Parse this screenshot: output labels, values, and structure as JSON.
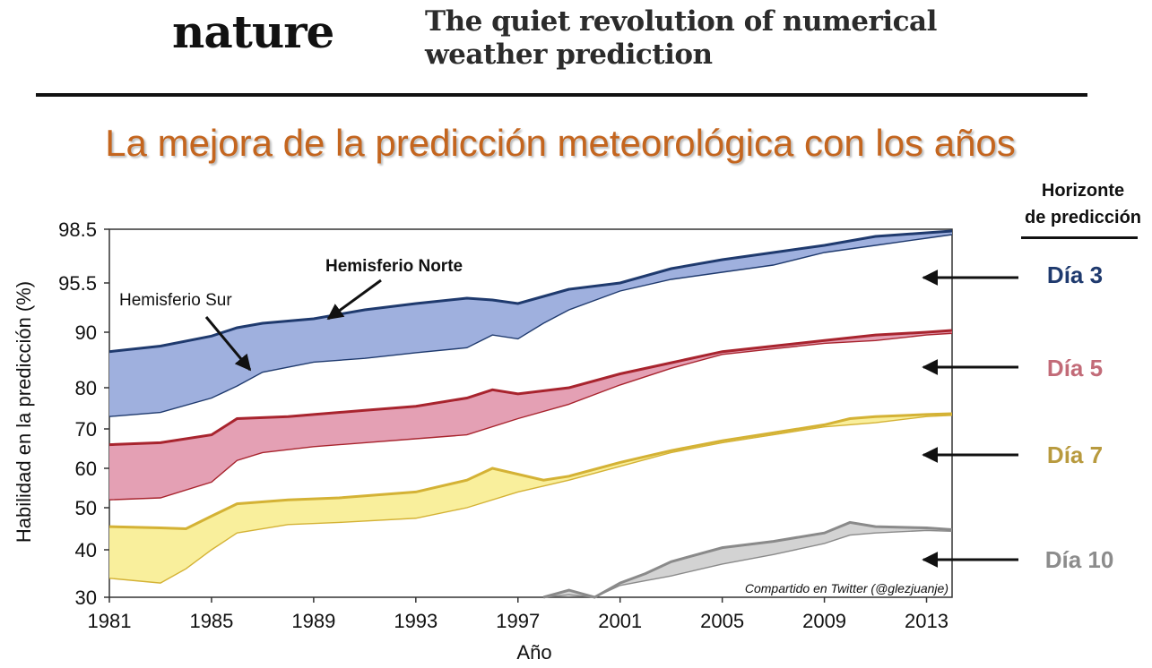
{
  "header": {
    "logo": "nature",
    "headline_line1": "The quiet revolution of numerical",
    "headline_line2": "weather prediction"
  },
  "title": "La mejora de la predicción meteorológica con los años",
  "horizon": {
    "title_line1": "Horizonte",
    "title_line2": "de predicción",
    "labels": [
      "Día 3",
      "Día 5",
      "Día 7",
      "Día 10"
    ]
  },
  "colors": {
    "day3_line": "#1f3a6e",
    "day3_fill": "#9fb0de",
    "day5_line": "#a8242e",
    "day5_fill": "#e4a0b4",
    "day7_line": "#d4b235",
    "day7_fill": "#f9ef9c",
    "day10_line": "#8a8a8a",
    "day10_fill": "#d3d3d3",
    "title": "#c4651e",
    "day3_label": "#1f3a6e",
    "day5_label": "#c26b78",
    "day7_label": "#b89a3e",
    "day10_label": "#8c8c8c"
  },
  "chart_data": {
    "type": "area",
    "xlabel": "Año",
    "ylabel": "Habilidad en la predicción (%)",
    "xlim": [
      1981,
      2014
    ],
    "ylim": [
      30,
      98.5
    ],
    "x_ticks": [
      1981,
      1985,
      1989,
      1993,
      1997,
      2001,
      2005,
      2009,
      2013
    ],
    "y_ticks": [
      "98.5",
      "95.5",
      "90",
      "80",
      "70",
      "60",
      "50",
      "40",
      "30"
    ],
    "annotations": {
      "north": "Hemisferio Norte",
      "south": "Hemisferio Sur",
      "credit": "Compartido en Twitter (@glezjuanje)"
    },
    "series": [
      {
        "name": "Día 3",
        "north": [
          [
            1981,
            86.5
          ],
          [
            1983,
            87.5
          ],
          [
            1985,
            89.3
          ],
          [
            1986,
            90.5
          ],
          [
            1987,
            91
          ],
          [
            1989,
            91.5
          ],
          [
            1991,
            92.5
          ],
          [
            1993,
            93.2
          ],
          [
            1995,
            93.8
          ],
          [
            1996,
            93.6
          ],
          [
            1997,
            93.2
          ],
          [
            1998,
            94.0
          ],
          [
            1999,
            94.8
          ],
          [
            2001,
            95.5
          ],
          [
            2003,
            96.3
          ],
          [
            2005,
            96.8
          ],
          [
            2007,
            97.2
          ],
          [
            2009,
            97.6
          ],
          [
            2011,
            98.1
          ],
          [
            2013,
            98.3
          ],
          [
            2014,
            98.4
          ]
        ],
        "south": [
          [
            1981,
            73
          ],
          [
            1983,
            74
          ],
          [
            1985,
            77.5
          ],
          [
            1986,
            80.3
          ],
          [
            1987,
            82.8
          ],
          [
            1989,
            84.6
          ],
          [
            1991,
            85.3
          ],
          [
            1993,
            86.3
          ],
          [
            1995,
            87.2
          ],
          [
            1996,
            89.5
          ],
          [
            1997,
            88.8
          ],
          [
            1998,
            91.0
          ],
          [
            1999,
            92.5
          ],
          [
            2001,
            94.6
          ],
          [
            2003,
            95.7
          ],
          [
            2005,
            96.1
          ],
          [
            2007,
            96.5
          ],
          [
            2009,
            97.2
          ],
          [
            2011,
            97.6
          ],
          [
            2013,
            98.0
          ],
          [
            2014,
            98.2
          ]
        ]
      },
      {
        "name": "Día 5",
        "north": [
          [
            1981,
            66
          ],
          [
            1983,
            66.5
          ],
          [
            1985,
            68.5
          ],
          [
            1986,
            72.5
          ],
          [
            1988,
            73
          ],
          [
            1989,
            73.5
          ],
          [
            1991,
            74.5
          ],
          [
            1993,
            75.5
          ],
          [
            1995,
            77.5
          ],
          [
            1996,
            79.5
          ],
          [
            1997,
            78.5
          ],
          [
            1999,
            80
          ],
          [
            2001,
            82.5
          ],
          [
            2003,
            84.5
          ],
          [
            2005,
            86.5
          ],
          [
            2007,
            87.5
          ],
          [
            2009,
            88.5
          ],
          [
            2011,
            89.5
          ],
          [
            2013,
            90
          ],
          [
            2014,
            90.2
          ]
        ],
        "south": [
          [
            1981,
            52
          ],
          [
            1983,
            52.5
          ],
          [
            1985,
            56.5
          ],
          [
            1986,
            62
          ],
          [
            1987,
            64
          ],
          [
            1989,
            65.5
          ],
          [
            1991,
            66.5
          ],
          [
            1993,
            67.5
          ],
          [
            1995,
            68.5
          ],
          [
            1997,
            72.5
          ],
          [
            1999,
            76
          ],
          [
            2001,
            80.5
          ],
          [
            2003,
            83.5
          ],
          [
            2005,
            86
          ],
          [
            2007,
            87
          ],
          [
            2009,
            88
          ],
          [
            2011,
            88.5
          ],
          [
            2013,
            89.5
          ],
          [
            2014,
            89.8
          ]
        ]
      },
      {
        "name": "Día 7",
        "north": [
          [
            1981,
            45.5
          ],
          [
            1983,
            45.2
          ],
          [
            1984,
            45
          ],
          [
            1985,
            48
          ],
          [
            1986,
            51
          ],
          [
            1988,
            52
          ],
          [
            1990,
            52.5
          ],
          [
            1993,
            54
          ],
          [
            1995,
            57
          ],
          [
            1996,
            60
          ],
          [
            1998,
            57
          ],
          [
            1999,
            58
          ],
          [
            2001,
            61.5
          ],
          [
            2003,
            64.5
          ],
          [
            2005,
            67
          ],
          [
            2007,
            69
          ],
          [
            2009,
            71
          ],
          [
            2010,
            72.5
          ],
          [
            2011,
            73
          ],
          [
            2013,
            73.5
          ],
          [
            2014,
            73.7
          ]
        ],
        "south": [
          [
            1981,
            34
          ],
          [
            1983,
            33
          ],
          [
            1984,
            36
          ],
          [
            1985,
            40
          ],
          [
            1986,
            44
          ],
          [
            1988,
            46
          ],
          [
            1990,
            46.5
          ],
          [
            1993,
            47.5
          ],
          [
            1995,
            50
          ],
          [
            1997,
            54
          ],
          [
            1999,
            57
          ],
          [
            2001,
            60.5
          ],
          [
            2003,
            64
          ],
          [
            2005,
            66.5
          ],
          [
            2007,
            68.5
          ],
          [
            2009,
            70.5
          ],
          [
            2011,
            71.5
          ],
          [
            2013,
            73
          ],
          [
            2014,
            73.3
          ]
        ]
      },
      {
        "name": "Día 10",
        "north": [
          [
            1998,
            30
          ],
          [
            1999,
            31.5
          ],
          [
            2000,
            30
          ],
          [
            2001,
            33
          ],
          [
            2002,
            35
          ],
          [
            2003,
            37.5
          ],
          [
            2005,
            40.5
          ],
          [
            2007,
            42
          ],
          [
            2009,
            44
          ],
          [
            2010,
            46.5
          ],
          [
            2011,
            45.5
          ],
          [
            2013,
            45.2
          ],
          [
            2014,
            44.8
          ]
        ],
        "south": [
          [
            1998,
            30
          ],
          [
            1999,
            30.5
          ],
          [
            2000,
            30
          ],
          [
            2001,
            32.5
          ],
          [
            2002,
            33.5
          ],
          [
            2003,
            34.5
          ],
          [
            2005,
            37
          ],
          [
            2007,
            39
          ],
          [
            2009,
            41.5
          ],
          [
            2010,
            43.5
          ],
          [
            2011,
            44
          ],
          [
            2013,
            44.6
          ],
          [
            2014,
            44.4
          ]
        ]
      }
    ]
  }
}
